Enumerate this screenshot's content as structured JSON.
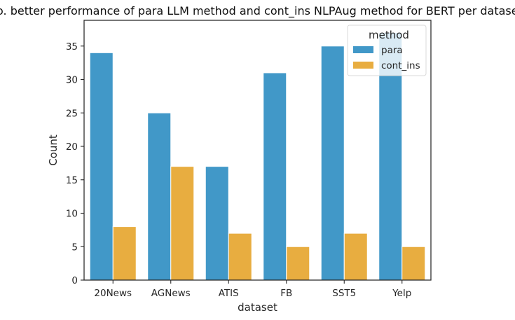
{
  "chart_data": {
    "type": "bar",
    "title": "No. better performance of para LLM method and cont_ins NLPAug method for BERT per dataset.",
    "xlabel": "dataset",
    "ylabel": "Count",
    "categories": [
      "20News",
      "AGNews",
      "ATIS",
      "FB",
      "SST5",
      "Yelp"
    ],
    "series": [
      {
        "name": "para",
        "values": [
          34,
          25,
          17,
          31,
          35,
          37
        ],
        "color": "#4198c8"
      },
      {
        "name": "cont_ins",
        "values": [
          8,
          17,
          7,
          5,
          7,
          5
        ],
        "color": "#e8ad40"
      }
    ],
    "ylim": [
      0,
      38.85
    ],
    "yticks": [
      0,
      5,
      10,
      15,
      20,
      25,
      30,
      35
    ],
    "legend": {
      "title": "method",
      "placement": "upper right"
    },
    "grid": false
  }
}
